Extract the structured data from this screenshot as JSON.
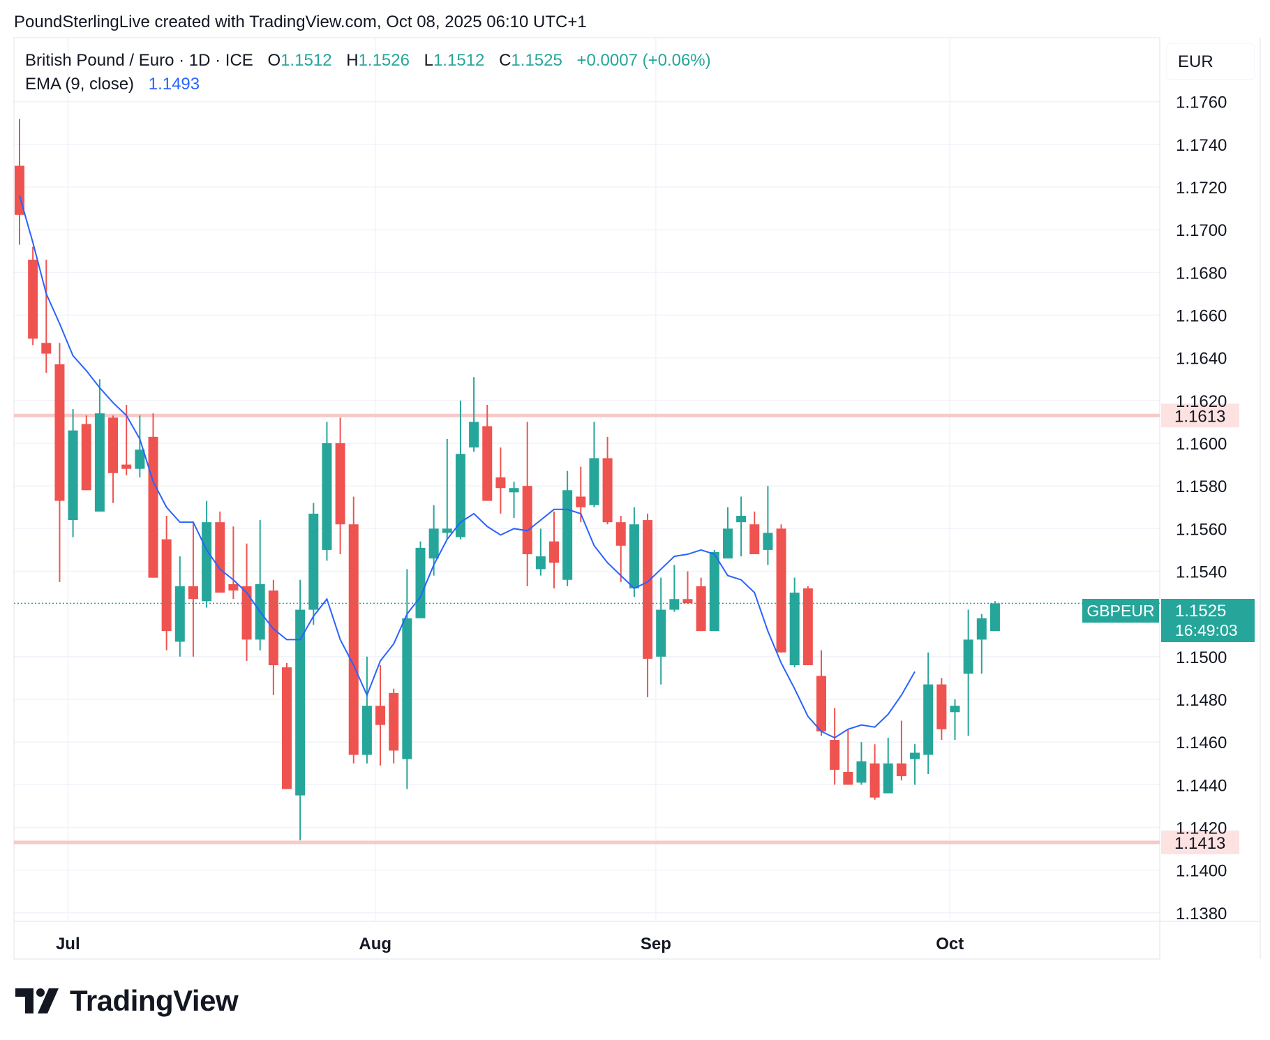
{
  "header": {
    "credit": "PoundSterlingLive created with TradingView.com, Oct 08, 2025 06:10 UTC+1"
  },
  "legend": {
    "symbol": "British Pound / Euro · 1D · ICE",
    "o_label": "O",
    "o_value": "1.1512",
    "h_label": "H",
    "h_value": "1.1526",
    "l_label": "L",
    "l_value": "1.1512",
    "c_label": "C",
    "c_value": "1.1525",
    "change": "+0.0007 (+0.06%)",
    "ema_label": "EMA (9, close)",
    "ema_value": "1.1493"
  },
  "currency_button": "EUR",
  "price_tag": {
    "ticker": "GBPEUR",
    "price": "1.1525",
    "countdown": "16:49:03"
  },
  "horizontal_lines": [
    {
      "label": "1.1613",
      "value": 1.1613
    },
    {
      "label": "1.1413",
      "value": 1.1413
    }
  ],
  "logo_text": "TradingView",
  "colors": {
    "up": "#26a69a",
    "down": "#ef5350",
    "ema": "#2962ff",
    "hline": "#f7c9c9",
    "hline_label_bg": "#fde2e2",
    "grid": "#f0f3fa",
    "axis_text": "#131722"
  },
  "chart_data": {
    "type": "candlestick",
    "title": "British Pound / Euro · 1D · ICE",
    "ylim": [
      1.1376,
      1.179
    ],
    "y_ticks": [
      "1.1760",
      "1.1740",
      "1.1720",
      "1.1700",
      "1.1680",
      "1.1660",
      "1.1640",
      "1.1620",
      "1.1600",
      "1.1580",
      "1.1560",
      "1.1540",
      "1.1500",
      "1.1480",
      "1.1460",
      "1.1440",
      "1.1420",
      "1.1400",
      "1.1380"
    ],
    "x_ticks": [
      {
        "label": "Jul",
        "index": 2
      },
      {
        "label": "Aug",
        "index": 25
      },
      {
        "label": "Sep",
        "index": 46
      },
      {
        "label": "Oct",
        "index": 68
      }
    ],
    "candles": [
      {
        "o": 1.173,
        "h": 1.1752,
        "l": 1.1693,
        "c": 1.1707
      },
      {
        "o": 1.1686,
        "h": 1.1692,
        "l": 1.1646,
        "c": 1.1649
      },
      {
        "o": 1.1647,
        "h": 1.1686,
        "l": 1.1633,
        "c": 1.1642
      },
      {
        "o": 1.1637,
        "h": 1.1647,
        "l": 1.1535,
        "c": 1.1573
      },
      {
        "o": 1.1564,
        "h": 1.1616,
        "l": 1.1556,
        "c": 1.1606
      },
      {
        "o": 1.1609,
        "h": 1.1613,
        "l": 1.1578,
        "c": 1.1578
      },
      {
        "o": 1.1568,
        "h": 1.163,
        "l": 1.1568,
        "c": 1.1614
      },
      {
        "o": 1.1612,
        "h": 1.1613,
        "l": 1.1572,
        "c": 1.1586
      },
      {
        "o": 1.159,
        "h": 1.1618,
        "l": 1.1585,
        "c": 1.1588
      },
      {
        "o": 1.1588,
        "h": 1.1613,
        "l": 1.1584,
        "c": 1.1597
      },
      {
        "o": 1.1603,
        "h": 1.1614,
        "l": 1.1537,
        "c": 1.1537
      },
      {
        "o": 1.1555,
        "h": 1.1566,
        "l": 1.1503,
        "c": 1.1512
      },
      {
        "o": 1.1507,
        "h": 1.1547,
        "l": 1.15,
        "c": 1.1533
      },
      {
        "o": 1.1533,
        "h": 1.1563,
        "l": 1.15,
        "c": 1.1527
      },
      {
        "o": 1.1526,
        "h": 1.1573,
        "l": 1.1523,
        "c": 1.1563
      },
      {
        "o": 1.1563,
        "h": 1.1568,
        "l": 1.153,
        "c": 1.153
      },
      {
        "o": 1.1534,
        "h": 1.1561,
        "l": 1.1527,
        "c": 1.1531
      },
      {
        "o": 1.1533,
        "h": 1.1553,
        "l": 1.1498,
        "c": 1.1508
      },
      {
        "o": 1.1508,
        "h": 1.1564,
        "l": 1.1503,
        "c": 1.1534
      },
      {
        "o": 1.1531,
        "h": 1.1536,
        "l": 1.1482,
        "c": 1.1496
      },
      {
        "o": 1.1495,
        "h": 1.1497,
        "l": 1.1438,
        "c": 1.1438
      },
      {
        "o": 1.1435,
        "h": 1.1536,
        "l": 1.1414,
        "c": 1.1522
      },
      {
        "o": 1.1522,
        "h": 1.1572,
        "l": 1.1515,
        "c": 1.1567
      },
      {
        "o": 1.155,
        "h": 1.161,
        "l": 1.1545,
        "c": 1.16
      },
      {
        "o": 1.16,
        "h": 1.1612,
        "l": 1.1548,
        "c": 1.1562
      },
      {
        "o": 1.1562,
        "h": 1.1575,
        "l": 1.145,
        "c": 1.1454
      },
      {
        "o": 1.1454,
        "h": 1.15,
        "l": 1.145,
        "c": 1.1477
      },
      {
        "o": 1.1477,
        "h": 1.1496,
        "l": 1.1449,
        "c": 1.1468
      },
      {
        "o": 1.1483,
        "h": 1.1485,
        "l": 1.145,
        "c": 1.1456
      },
      {
        "o": 1.1452,
        "h": 1.1541,
        "l": 1.1438,
        "c": 1.1518
      },
      {
        "o": 1.1518,
        "h": 1.1554,
        "l": 1.1518,
        "c": 1.1551
      },
      {
        "o": 1.1546,
        "h": 1.1571,
        "l": 1.1538,
        "c": 1.156
      },
      {
        "o": 1.1558,
        "h": 1.1602,
        "l": 1.1555,
        "c": 1.156
      },
      {
        "o": 1.1556,
        "h": 1.162,
        "l": 1.1555,
        "c": 1.1595
      },
      {
        "o": 1.1598,
        "h": 1.1631,
        "l": 1.1596,
        "c": 1.161
      },
      {
        "o": 1.1608,
        "h": 1.1618,
        "l": 1.1573,
        "c": 1.1573
      },
      {
        "o": 1.1584,
        "h": 1.1598,
        "l": 1.1567,
        "c": 1.1579
      },
      {
        "o": 1.1577,
        "h": 1.1582,
        "l": 1.1565,
        "c": 1.1579
      },
      {
        "o": 1.158,
        "h": 1.161,
        "l": 1.1533,
        "c": 1.1548
      },
      {
        "o": 1.1541,
        "h": 1.156,
        "l": 1.1538,
        "c": 1.1547
      },
      {
        "o": 1.1554,
        "h": 1.1568,
        "l": 1.1532,
        "c": 1.1544
      },
      {
        "o": 1.1536,
        "h": 1.1587,
        "l": 1.1533,
        "c": 1.1578
      },
      {
        "o": 1.1575,
        "h": 1.1589,
        "l": 1.1563,
        "c": 1.157
      },
      {
        "o": 1.1571,
        "h": 1.161,
        "l": 1.157,
        "c": 1.1593
      },
      {
        "o": 1.1593,
        "h": 1.1603,
        "l": 1.1562,
        "c": 1.1563
      },
      {
        "o": 1.1563,
        "h": 1.1566,
        "l": 1.1535,
        "c": 1.1552
      },
      {
        "o": 1.1532,
        "h": 1.157,
        "l": 1.1528,
        "c": 1.1562
      },
      {
        "o": 1.1564,
        "h": 1.1567,
        "l": 1.1481,
        "c": 1.1499
      },
      {
        "o": 1.15,
        "h": 1.1537,
        "l": 1.1487,
        "c": 1.1522
      },
      {
        "o": 1.1522,
        "h": 1.1543,
        "l": 1.1521,
        "c": 1.1527
      },
      {
        "o": 1.1527,
        "h": 1.154,
        "l": 1.1525,
        "c": 1.1525
      },
      {
        "o": 1.1533,
        "h": 1.1537,
        "l": 1.1512,
        "c": 1.1512
      },
      {
        "o": 1.1512,
        "h": 1.155,
        "l": 1.1512,
        "c": 1.1549
      },
      {
        "o": 1.1546,
        "h": 1.157,
        "l": 1.1546,
        "c": 1.156
      },
      {
        "o": 1.1563,
        "h": 1.1575,
        "l": 1.1547,
        "c": 1.1566
      },
      {
        "o": 1.1562,
        "h": 1.1568,
        "l": 1.1548,
        "c": 1.1548
      },
      {
        "o": 1.155,
        "h": 1.158,
        "l": 1.1543,
        "c": 1.1558
      },
      {
        "o": 1.156,
        "h": 1.1562,
        "l": 1.1502,
        "c": 1.1502
      },
      {
        "o": 1.1496,
        "h": 1.1537,
        "l": 1.1495,
        "c": 1.153
      },
      {
        "o": 1.1532,
        "h": 1.1533,
        "l": 1.1498,
        "c": 1.1496
      },
      {
        "o": 1.1491,
        "h": 1.1503,
        "l": 1.1463,
        "c": 1.1465
      },
      {
        "o": 1.1461,
        "h": 1.1476,
        "l": 1.144,
        "c": 1.1447
      },
      {
        "o": 1.1446,
        "h": 1.1466,
        "l": 1.144,
        "c": 1.144
      },
      {
        "o": 1.1441,
        "h": 1.146,
        "l": 1.144,
        "c": 1.1451
      },
      {
        "o": 1.145,
        "h": 1.1459,
        "l": 1.1433,
        "c": 1.1434
      },
      {
        "o": 1.1436,
        "h": 1.1462,
        "l": 1.1436,
        "c": 1.145
      },
      {
        "o": 1.145,
        "h": 1.147,
        "l": 1.1442,
        "c": 1.1444
      },
      {
        "o": 1.1452,
        "h": 1.1459,
        "l": 1.144,
        "c": 1.1455
      },
      {
        "o": 1.1454,
        "h": 1.1502,
        "l": 1.1445,
        "c": 1.1487
      },
      {
        "o": 1.1487,
        "h": 1.149,
        "l": 1.1461,
        "c": 1.1466
      },
      {
        "o": 1.1474,
        "h": 1.148,
        "l": 1.1461,
        "c": 1.1477
      },
      {
        "o": 1.1492,
        "h": 1.1522,
        "l": 1.1463,
        "c": 1.1508
      },
      {
        "o": 1.1508,
        "h": 1.152,
        "l": 1.1492,
        "c": 1.1518
      },
      {
        "o": 1.1512,
        "h": 1.1526,
        "l": 1.1512,
        "c": 1.1525
      }
    ],
    "ema": [
      1.1716,
      1.1694,
      1.167,
      1.1656,
      1.1641,
      1.1634,
      1.1626,
      1.1619,
      1.1613,
      1.1602,
      1.1582,
      1.157,
      1.1563,
      1.1563,
      1.155,
      1.1541,
      1.1536,
      1.153,
      1.1521,
      1.1513,
      1.1508,
      1.1508,
      1.1519,
      1.1527,
      1.1508,
      1.1496,
      1.1482,
      1.1498,
      1.1506,
      1.152,
      1.1528,
      1.1543,
      1.1555,
      1.1563,
      1.1567,
      1.1561,
      1.1557,
      1.156,
      1.1559,
      1.1564,
      1.1569,
      1.1569,
      1.1567,
      1.1552,
      1.1544,
      1.1538,
      1.1532,
      1.1535,
      1.1541,
      1.1547,
      1.1548,
      1.155,
      1.1548,
      1.1538,
      1.1536,
      1.153,
      1.1512,
      1.1497,
      1.1485,
      1.1472,
      1.1465,
      1.1462,
      1.1466,
      1.1468,
      1.1467,
      1.1473,
      1.1482,
      1.1493
    ]
  }
}
